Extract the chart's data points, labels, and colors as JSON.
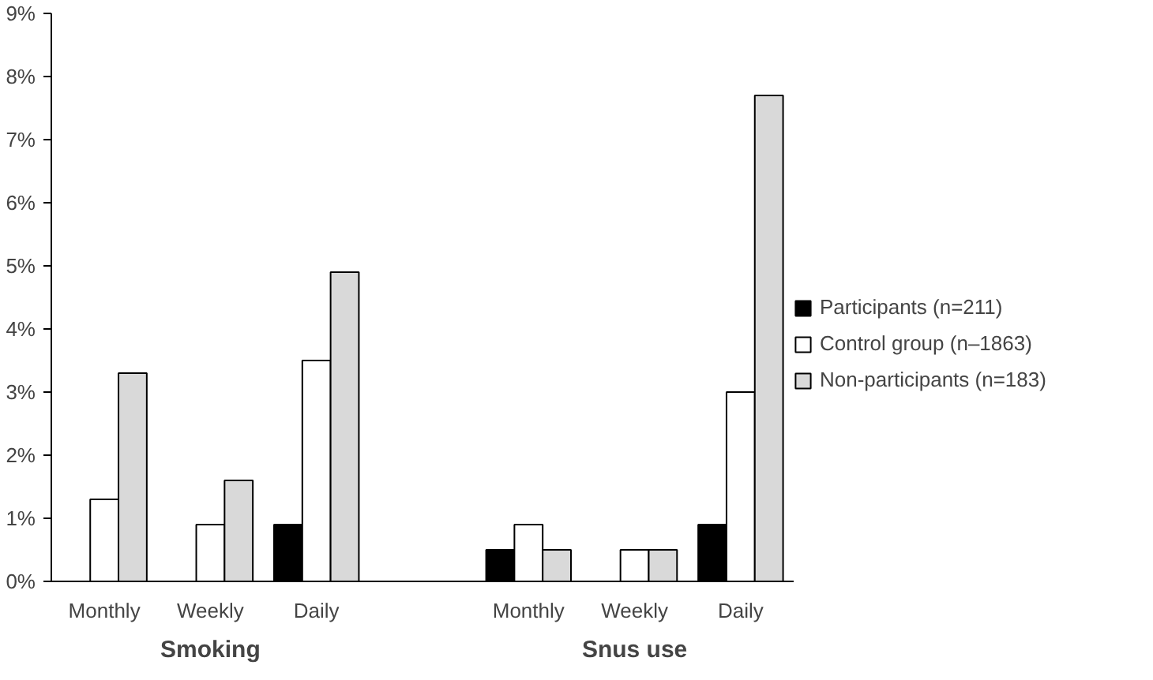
{
  "chart_data": {
    "type": "bar",
    "categories": [
      "Monthly",
      "Weekly",
      "Daily",
      null,
      "Monthly",
      "Weekly",
      "Daily"
    ],
    "series": [
      {
        "name": "Participants (n=211)",
        "color": "#000000",
        "values": [
          0,
          0,
          0.9,
          null,
          0.5,
          0,
          0.9
        ]
      },
      {
        "name": "Control group (n–1863)",
        "color": "#ffffff",
        "values": [
          1.3,
          0.9,
          3.5,
          null,
          0.9,
          0.5,
          3.0
        ]
      },
      {
        "name": "Non-participants (n=183)",
        "color": "#d9d9d9",
        "values": [
          3.3,
          1.6,
          4.9,
          null,
          0.5,
          0.5,
          7.7
        ]
      }
    ],
    "ylim": [
      0,
      9
    ],
    "yticks": [
      {
        "value": 0,
        "label": "0%"
      },
      {
        "value": 1,
        "label": "1%"
      },
      {
        "value": 2,
        "label": "2%"
      },
      {
        "value": 3,
        "label": "3%"
      },
      {
        "value": 4,
        "label": "4%"
      },
      {
        "value": 5,
        "label": "5%"
      },
      {
        "value": 6,
        "label": "6%"
      },
      {
        "value": 7,
        "label": "7%"
      },
      {
        "value": 8,
        "label": "8%"
      },
      {
        "value": 9,
        "label": "9%"
      }
    ],
    "annotations": [
      "Smoking",
      "Snus use"
    ],
    "grid": false,
    "legend": "right"
  }
}
